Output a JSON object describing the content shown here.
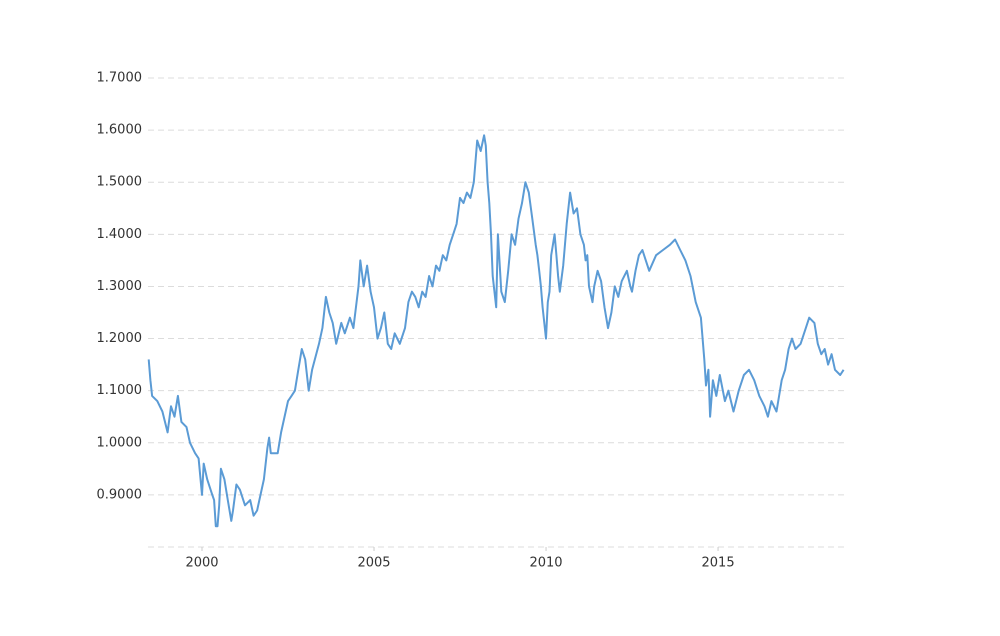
{
  "chart_data": {
    "type": "line",
    "color": "#5b9bd5",
    "grid": true,
    "xlim": [
      1998.43,
      2018.69
    ],
    "ylim": [
      0.8,
      1.7
    ],
    "xticks": [
      2000,
      2005,
      2010,
      2015
    ],
    "yticks": [
      {
        "value": 0.9,
        "label": "0.9000"
      },
      {
        "value": 1.0,
        "label": "1.0000"
      },
      {
        "value": 1.1,
        "label": "1.1000"
      },
      {
        "value": 1.2,
        "label": "1.2000"
      },
      {
        "value": 1.3,
        "label": "1.3000"
      },
      {
        "value": 1.4,
        "label": "1.4000"
      },
      {
        "value": 1.5,
        "label": "1.5000"
      },
      {
        "value": 1.6,
        "label": "1.6000"
      },
      {
        "value": 1.7,
        "label": "1.7000"
      }
    ],
    "x": [
      1998.45,
      1998.5,
      1998.55,
      1998.7,
      1998.85,
      1999.0,
      1999.1,
      1999.2,
      1999.3,
      1999.4,
      1999.55,
      1999.65,
      1999.8,
      1999.9,
      2000.0,
      2000.05,
      2000.15,
      2000.3,
      2000.35,
      2000.4,
      2000.45,
      2000.5,
      2000.55,
      2000.65,
      2000.75,
      2000.85,
      2000.9,
      2001.0,
      2001.1,
      2001.25,
      2001.4,
      2001.5,
      2001.6,
      2001.7,
      2001.8,
      2001.9,
      2001.95,
      2002.0,
      2002.2,
      2002.3,
      2002.5,
      2002.6,
      2002.7,
      2002.8,
      2002.9,
      2003.0,
      2003.1,
      2003.2,
      2003.4,
      2003.5,
      2003.6,
      2003.7,
      2003.8,
      2003.9,
      2004.05,
      2004.15,
      2004.3,
      2004.4,
      2004.55,
      2004.6,
      2004.7,
      2004.8,
      2004.9,
      2005.0,
      2005.1,
      2005.2,
      2005.3,
      2005.4,
      2005.5,
      2005.6,
      2005.75,
      2005.9,
      2006.0,
      2006.1,
      2006.2,
      2006.3,
      2006.4,
      2006.5,
      2006.6,
      2006.7,
      2006.8,
      2006.9,
      2007.0,
      2007.1,
      2007.2,
      2007.3,
      2007.4,
      2007.5,
      2007.6,
      2007.7,
      2007.8,
      2007.9,
      2008.0,
      2008.1,
      2008.2,
      2008.25,
      2008.3,
      2008.35,
      2008.4,
      2008.45,
      2008.55,
      2008.6,
      2008.7,
      2008.8,
      2008.9,
      2009.0,
      2009.1,
      2009.2,
      2009.3,
      2009.4,
      2009.5,
      2009.6,
      2009.7,
      2009.75,
      2009.8,
      2009.85,
      2009.9,
      2010.0,
      2010.05,
      2010.1,
      2010.15,
      2010.2,
      2010.25,
      2010.3,
      2010.35,
      2010.4,
      2010.5,
      2010.6,
      2010.7,
      2010.8,
      2010.9,
      2011.0,
      2011.1,
      2011.15,
      2011.2,
      2011.25,
      2011.35,
      2011.4,
      2011.5,
      2011.6,
      2011.7,
      2011.8,
      2011.9,
      2012.0,
      2012.1,
      2012.2,
      2012.35,
      2012.45,
      2012.5,
      2012.6,
      2012.7,
      2012.8,
      2012.9,
      2013.0,
      2013.2,
      2013.4,
      2013.6,
      2013.75,
      2013.9,
      2014.05,
      2014.2,
      2014.35,
      2014.5,
      2014.6,
      2014.65,
      2014.72,
      2014.77,
      2014.85,
      2014.95,
      2015.05,
      2015.2,
      2015.3,
      2015.45,
      2015.6,
      2015.75,
      2015.9,
      2016.05,
      2016.2,
      2016.35,
      2016.45,
      2016.55,
      2016.7,
      2016.85,
      2016.95,
      2017.05,
      2017.15,
      2017.25,
      2017.4,
      2017.55,
      2017.65,
      2017.8,
      2017.9,
      2018.0,
      2018.1,
      2018.2,
      2018.3,
      2018.4,
      2018.55,
      2018.65
    ],
    "values": [
      1.16,
      1.12,
      1.09,
      1.08,
      1.06,
      1.02,
      1.07,
      1.05,
      1.09,
      1.04,
      1.03,
      1.0,
      0.98,
      0.97,
      0.9,
      0.96,
      0.93,
      0.9,
      0.89,
      0.84,
      0.84,
      0.88,
      0.95,
      0.93,
      0.89,
      0.85,
      0.87,
      0.92,
      0.91,
      0.88,
      0.89,
      0.86,
      0.87,
      0.9,
      0.93,
      0.99,
      1.01,
      0.98,
      0.98,
      1.02,
      1.08,
      1.09,
      1.1,
      1.14,
      1.18,
      1.16,
      1.1,
      1.14,
      1.19,
      1.22,
      1.28,
      1.25,
      1.23,
      1.19,
      1.23,
      1.21,
      1.24,
      1.22,
      1.3,
      1.35,
      1.3,
      1.34,
      1.29,
      1.26,
      1.2,
      1.22,
      1.25,
      1.19,
      1.18,
      1.21,
      1.19,
      1.22,
      1.27,
      1.29,
      1.28,
      1.26,
      1.29,
      1.28,
      1.32,
      1.3,
      1.34,
      1.33,
      1.36,
      1.35,
      1.38,
      1.4,
      1.42,
      1.47,
      1.46,
      1.48,
      1.47,
      1.5,
      1.58,
      1.56,
      1.59,
      1.57,
      1.5,
      1.46,
      1.4,
      1.32,
      1.26,
      1.4,
      1.29,
      1.27,
      1.33,
      1.4,
      1.38,
      1.43,
      1.46,
      1.5,
      1.48,
      1.43,
      1.38,
      1.36,
      1.33,
      1.3,
      1.26,
      1.2,
      1.27,
      1.29,
      1.36,
      1.38,
      1.4,
      1.36,
      1.32,
      1.29,
      1.34,
      1.42,
      1.48,
      1.44,
      1.45,
      1.4,
      1.38,
      1.35,
      1.36,
      1.3,
      1.27,
      1.3,
      1.33,
      1.31,
      1.26,
      1.22,
      1.25,
      1.3,
      1.28,
      1.31,
      1.33,
      1.3,
      1.29,
      1.33,
      1.36,
      1.37,
      1.35,
      1.33,
      1.36,
      1.37,
      1.38,
      1.39,
      1.37,
      1.35,
      1.32,
      1.27,
      1.24,
      1.16,
      1.11,
      1.14,
      1.05,
      1.12,
      1.09,
      1.13,
      1.08,
      1.1,
      1.06,
      1.1,
      1.13,
      1.14,
      1.12,
      1.09,
      1.07,
      1.05,
      1.08,
      1.06,
      1.12,
      1.14,
      1.18,
      1.2,
      1.18,
      1.19,
      1.22,
      1.24,
      1.23,
      1.19,
      1.17,
      1.18,
      1.15,
      1.17,
      1.14,
      1.13,
      1.14
    ]
  }
}
